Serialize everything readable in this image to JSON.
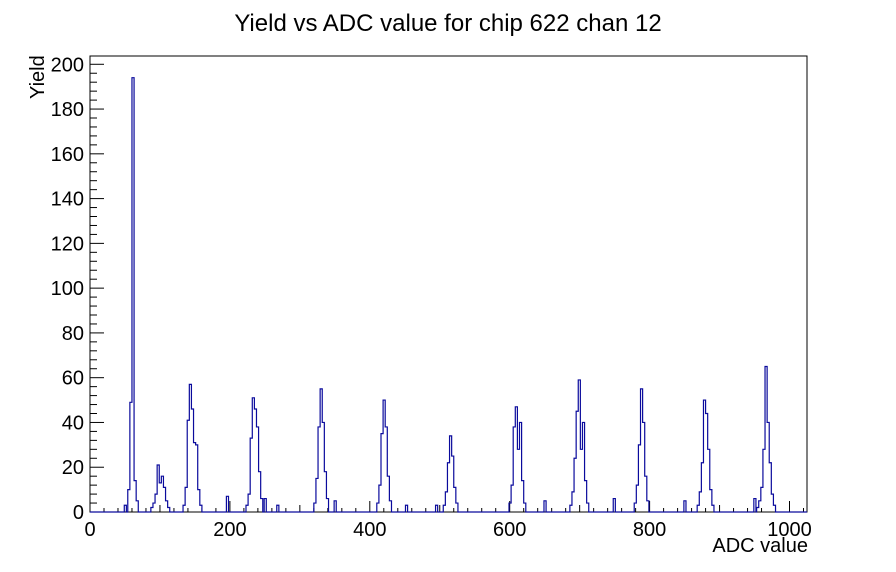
{
  "chart_data": {
    "type": "bar",
    "subtype": "step-histogram",
    "title": "Yield vs ADC value for chip 622 chan 12",
    "xlabel": "ADC value",
    "ylabel": "Yield",
    "xlim": [
      0,
      1025
    ],
    "ylim": [
      0,
      203.7
    ],
    "xticks_major": [
      0,
      200,
      400,
      600,
      800,
      1000
    ],
    "xticks_medium": [
      100,
      300,
      500,
      700,
      900
    ],
    "xtick_minor_step": 20,
    "yticks_major": [
      0,
      20,
      40,
      60,
      80,
      100,
      120,
      140,
      160,
      180,
      200
    ],
    "ytick_minor_step": 4,
    "grid": false,
    "legend": "none",
    "line_color": "#0a0a9c",
    "axis_color": "#000000",
    "bin_width_adc": 3,
    "bins": [
      {
        "adc_start": 49,
        "yields": [
          3
        ]
      },
      {
        "adc_start": 54,
        "yields": [
          10,
          49,
          194,
          14,
          5
        ]
      },
      {
        "adc_start": 87,
        "yields": [
          2,
          4,
          8,
          21,
          13,
          16,
          11,
          5,
          2
        ]
      },
      {
        "adc_start": 133,
        "yields": [
          3,
          11,
          41,
          57,
          46,
          31,
          30,
          10,
          3
        ]
      },
      {
        "adc_start": 195,
        "yields": [
          7
        ]
      },
      {
        "adc_start": 223,
        "yields": [
          3,
          8,
          33,
          51,
          46,
          38,
          18,
          6
        ]
      },
      {
        "adc_start": 249,
        "yields": [
          6
        ]
      },
      {
        "adc_start": 267,
        "yields": [
          3
        ]
      },
      {
        "adc_start": 320,
        "yields": [
          4,
          15,
          38,
          55,
          40,
          18,
          6
        ]
      },
      {
        "adc_start": 349,
        "yields": [
          5
        ]
      },
      {
        "adc_start": 410,
        "yields": [
          4,
          12,
          35,
          50,
          38,
          16,
          5
        ]
      },
      {
        "adc_start": 451,
        "yields": [
          3
        ]
      },
      {
        "adc_start": 494,
        "yields": [
          3
        ]
      },
      {
        "adc_start": 505,
        "yields": [
          3,
          9,
          22,
          34,
          25,
          11,
          4
        ]
      },
      {
        "adc_start": 599,
        "yields": [
          4,
          12,
          38,
          47,
          28,
          40,
          14,
          4
        ]
      },
      {
        "adc_start": 649,
        "yields": [
          5
        ]
      },
      {
        "adc_start": 686,
        "yields": [
          3,
          9,
          24,
          45,
          59,
          28,
          40,
          14,
          4
        ]
      },
      {
        "adc_start": 748,
        "yields": [
          6
        ]
      },
      {
        "adc_start": 778,
        "yields": [
          4,
          12,
          30,
          55,
          40,
          16,
          5
        ]
      },
      {
        "adc_start": 849,
        "yields": [
          5
        ]
      },
      {
        "adc_start": 868,
        "yields": [
          3,
          9,
          22,
          50,
          44,
          28,
          10,
          3
        ]
      },
      {
        "adc_start": 949,
        "yields": [
          6
        ]
      },
      {
        "adc_start": 953,
        "yields": [
          2,
          5,
          11,
          28,
          65,
          40,
          22,
          8,
          3
        ]
      }
    ],
    "max_bin_yield": 194
  }
}
